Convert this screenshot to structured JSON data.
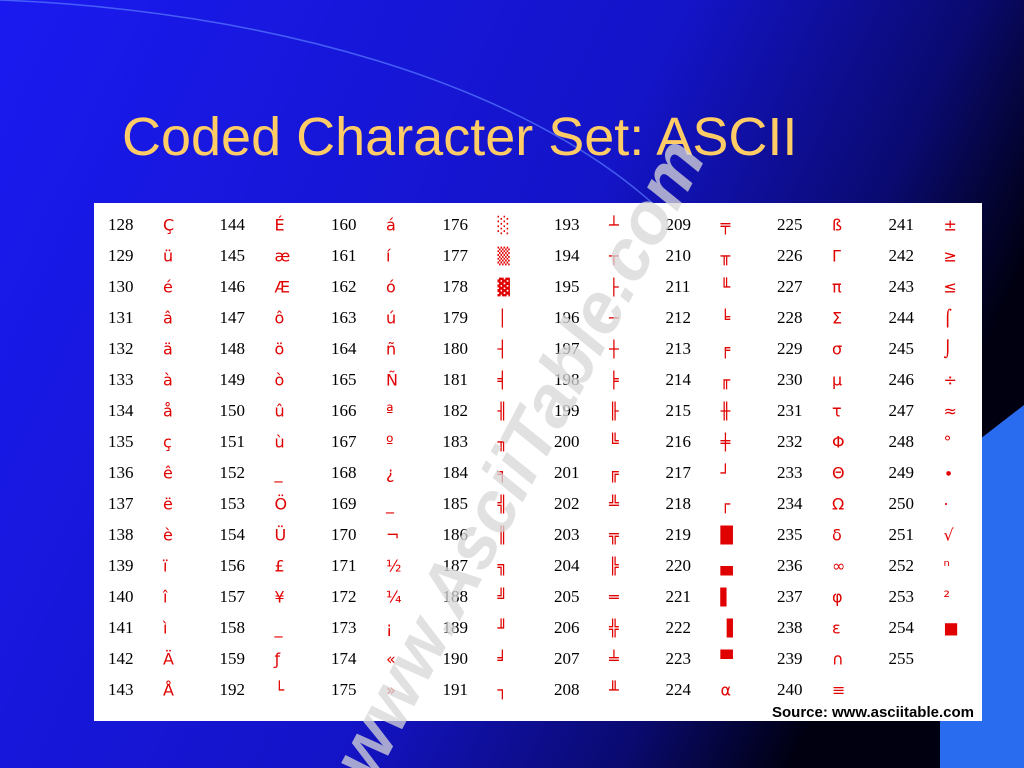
{
  "title": "Coded Character Set: ASCII",
  "table": {
    "columns": [
      [
        {
          "code": 128,
          "char": "Ç"
        },
        {
          "code": 129,
          "char": "ü"
        },
        {
          "code": 130,
          "char": "é"
        },
        {
          "code": 131,
          "char": "â"
        },
        {
          "code": 132,
          "char": "ä"
        },
        {
          "code": 133,
          "char": "à"
        },
        {
          "code": 134,
          "char": "å"
        },
        {
          "code": 135,
          "char": "ç"
        },
        {
          "code": 136,
          "char": "ê"
        },
        {
          "code": 137,
          "char": "ë"
        },
        {
          "code": 138,
          "char": "è"
        },
        {
          "code": 139,
          "char": "ï"
        },
        {
          "code": 140,
          "char": "î"
        },
        {
          "code": 141,
          "char": "ì"
        },
        {
          "code": 142,
          "char": "Ä"
        },
        {
          "code": 143,
          "char": "Å"
        }
      ],
      [
        {
          "code": 144,
          "char": "É"
        },
        {
          "code": 145,
          "char": "æ"
        },
        {
          "code": 146,
          "char": "Æ"
        },
        {
          "code": 147,
          "char": "ô"
        },
        {
          "code": 148,
          "char": "ö"
        },
        {
          "code": 149,
          "char": "ò"
        },
        {
          "code": 150,
          "char": "û"
        },
        {
          "code": 151,
          "char": "ù"
        },
        {
          "code": 152,
          "char": "_"
        },
        {
          "code": 153,
          "char": "Ö"
        },
        {
          "code": 154,
          "char": "Ü"
        },
        {
          "code": 156,
          "char": "£"
        },
        {
          "code": 157,
          "char": "¥"
        },
        {
          "code": 158,
          "char": "_"
        },
        {
          "code": 159,
          "char": "ƒ"
        },
        {
          "code": 192,
          "char": "└"
        }
      ],
      [
        {
          "code": 160,
          "char": "á"
        },
        {
          "code": 161,
          "char": "í"
        },
        {
          "code": 162,
          "char": "ó"
        },
        {
          "code": 163,
          "char": "ú"
        },
        {
          "code": 164,
          "char": "ñ"
        },
        {
          "code": 165,
          "char": "Ñ"
        },
        {
          "code": 166,
          "char": "ª"
        },
        {
          "code": 167,
          "char": "º"
        },
        {
          "code": 168,
          "char": "¿"
        },
        {
          "code": 169,
          "char": "_"
        },
        {
          "code": 170,
          "char": "¬"
        },
        {
          "code": 171,
          "char": "½"
        },
        {
          "code": 172,
          "char": "¼"
        },
        {
          "code": 173,
          "char": "¡"
        },
        {
          "code": 174,
          "char": "«"
        },
        {
          "code": 175,
          "char": "»"
        }
      ],
      [
        {
          "code": 176,
          "char": "░"
        },
        {
          "code": 177,
          "char": "▒"
        },
        {
          "code": 178,
          "char": "▓"
        },
        {
          "code": 179,
          "char": "│"
        },
        {
          "code": 180,
          "char": "┤"
        },
        {
          "code": 181,
          "char": "╡"
        },
        {
          "code": 182,
          "char": "╢"
        },
        {
          "code": 183,
          "char": "╖"
        },
        {
          "code": 184,
          "char": "╕"
        },
        {
          "code": 185,
          "char": "╣"
        },
        {
          "code": 186,
          "char": "║"
        },
        {
          "code": 187,
          "char": "╗"
        },
        {
          "code": 188,
          "char": "╝"
        },
        {
          "code": 189,
          "char": "╜"
        },
        {
          "code": 190,
          "char": "╛"
        },
        {
          "code": 191,
          "char": "┐"
        }
      ],
      [
        {
          "code": 193,
          "char": "┴"
        },
        {
          "code": 194,
          "char": "┬"
        },
        {
          "code": 195,
          "char": "├"
        },
        {
          "code": 196,
          "char": "─"
        },
        {
          "code": 197,
          "char": "┼"
        },
        {
          "code": 198,
          "char": "╞"
        },
        {
          "code": 199,
          "char": "╟"
        },
        {
          "code": 200,
          "char": "╚"
        },
        {
          "code": 201,
          "char": "╔"
        },
        {
          "code": 202,
          "char": "╩"
        },
        {
          "code": 203,
          "char": "╦"
        },
        {
          "code": 204,
          "char": "╠"
        },
        {
          "code": 205,
          "char": "═"
        },
        {
          "code": 206,
          "char": "╬"
        },
        {
          "code": 207,
          "char": "╧"
        },
        {
          "code": 208,
          "char": "╨"
        }
      ],
      [
        {
          "code": 209,
          "char": "╤"
        },
        {
          "code": 210,
          "char": "╥"
        },
        {
          "code": 211,
          "char": "╙"
        },
        {
          "code": 212,
          "char": "╘"
        },
        {
          "code": 213,
          "char": "╒"
        },
        {
          "code": 214,
          "char": "╓"
        },
        {
          "code": 215,
          "char": "╫"
        },
        {
          "code": 216,
          "char": "╪"
        },
        {
          "code": 217,
          "char": "┘"
        },
        {
          "code": 218,
          "char": "┌"
        },
        {
          "code": 219,
          "char": "█"
        },
        {
          "code": 220,
          "char": "▄"
        },
        {
          "code": 221,
          "char": "▌"
        },
        {
          "code": 222,
          "char": "▐"
        },
        {
          "code": 223,
          "char": "▀"
        },
        {
          "code": 224,
          "char": "α"
        }
      ],
      [
        {
          "code": 225,
          "char": "ß"
        },
        {
          "code": 226,
          "char": "Γ"
        },
        {
          "code": 227,
          "char": "π"
        },
        {
          "code": 228,
          "char": "Σ"
        },
        {
          "code": 229,
          "char": "σ"
        },
        {
          "code": 230,
          "char": "µ"
        },
        {
          "code": 231,
          "char": "τ"
        },
        {
          "code": 232,
          "char": "Φ"
        },
        {
          "code": 233,
          "char": "Θ"
        },
        {
          "code": 234,
          "char": "Ω"
        },
        {
          "code": 235,
          "char": "δ"
        },
        {
          "code": 236,
          "char": "∞"
        },
        {
          "code": 237,
          "char": "φ"
        },
        {
          "code": 238,
          "char": "ε"
        },
        {
          "code": 239,
          "char": "∩"
        },
        {
          "code": 240,
          "char": "≡"
        }
      ],
      [
        {
          "code": 241,
          "char": "±"
        },
        {
          "code": 242,
          "char": "≥"
        },
        {
          "code": 243,
          "char": "≤"
        },
        {
          "code": 244,
          "char": "⌠"
        },
        {
          "code": 245,
          "char": "⌡"
        },
        {
          "code": 246,
          "char": "÷"
        },
        {
          "code": 247,
          "char": "≈"
        },
        {
          "code": 248,
          "char": "°"
        },
        {
          "code": 249,
          "char": "∙"
        },
        {
          "code": 250,
          "char": "·"
        },
        {
          "code": 251,
          "char": "√"
        },
        {
          "code": 252,
          "char": "ⁿ"
        },
        {
          "code": 253,
          "char": "²"
        },
        {
          "code": 254,
          "char": "■"
        },
        {
          "code": 255
        }
      ]
    ]
  },
  "watermark": "www.AsciiTable.com",
  "source": "Source: www.asciitable.com"
}
